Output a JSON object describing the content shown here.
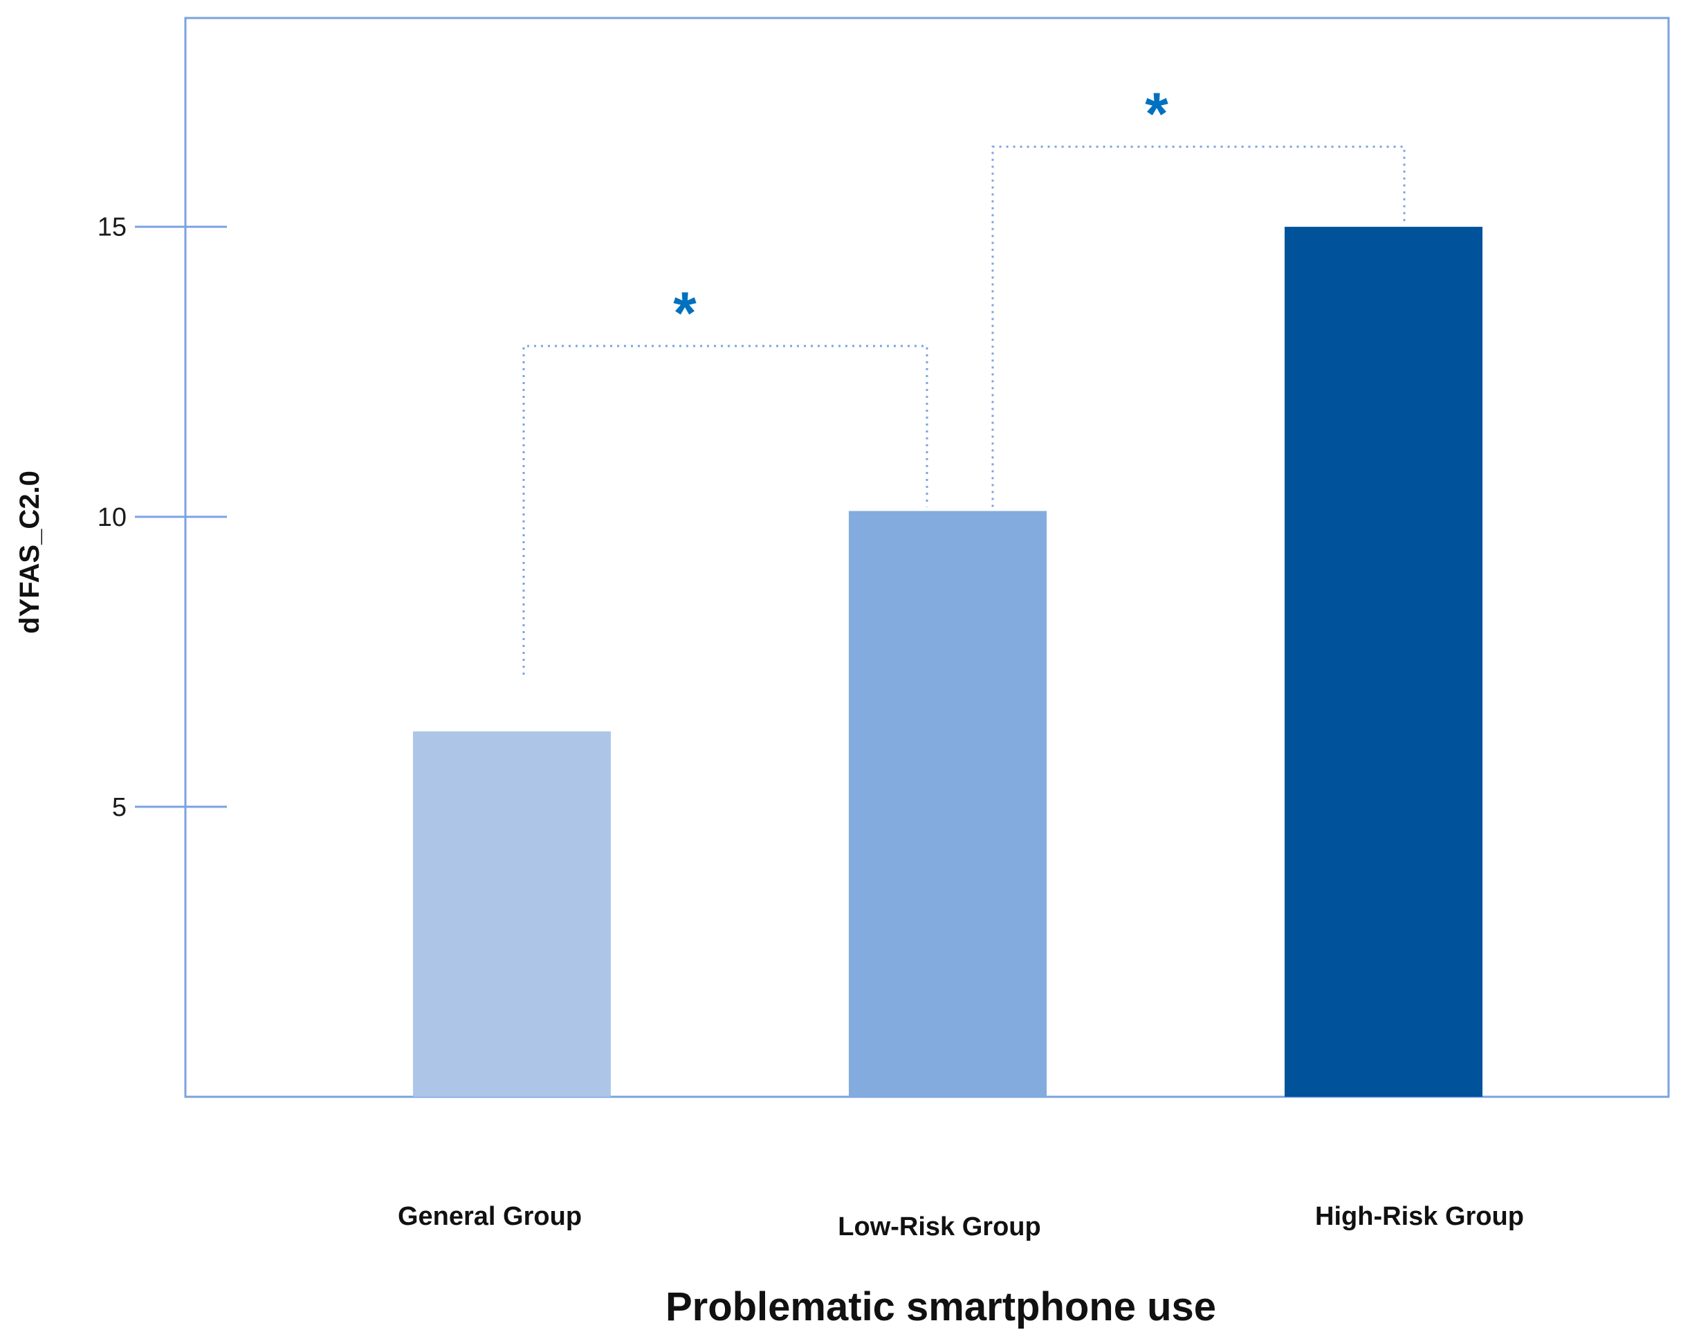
{
  "chart_data": {
    "type": "bar",
    "categories": [
      "General Group",
      "Low-Risk Group",
      "High-Risk Group"
    ],
    "values": [
      6.3,
      10.1,
      15.0
    ],
    "xlabel": "Problematic smartphone use",
    "ylabel": "dYFAS_C2.0",
    "ylim": [
      0,
      18.6
    ],
    "yticks": [
      5,
      10,
      15
    ],
    "grid": false,
    "legend": "none",
    "colors": {
      "bars": [
        "#adc6e8",
        "#84abdd",
        "#00529b"
      ],
      "frame": "#7ba2e0",
      "bracket": "#7ba2e0",
      "star": "#0070c0"
    },
    "significance": [
      {
        "from": "General Group",
        "to": "Low-Risk Group",
        "label": "*"
      },
      {
        "from": "Low-Risk Group",
        "to": "High-Risk Group",
        "label": "*"
      }
    ]
  }
}
